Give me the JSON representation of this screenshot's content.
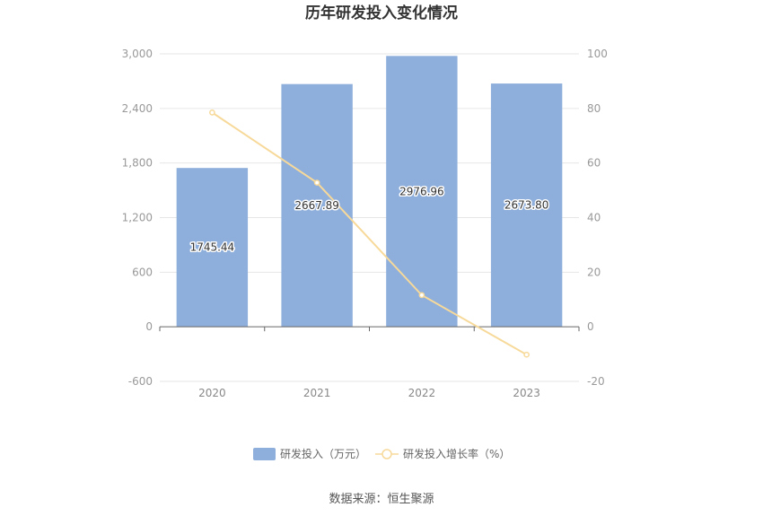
{
  "chart_data": {
    "type": "bar",
    "title": "历年研发投入变化情况",
    "categories": [
      "2020",
      "2021",
      "2022",
      "2023"
    ],
    "series": [
      {
        "name": "研发投入（万元）",
        "type": "bar",
        "axis": "left",
        "values": [
          1745.44,
          2667.89,
          2976.96,
          2673.8
        ],
        "labels": [
          "1745.44",
          "2667.89",
          "2976.96",
          "2673.80"
        ],
        "color": "#8eaedb"
      },
      {
        "name": "研发投入增长率（%）",
        "type": "line",
        "axis": "right",
        "values": [
          78.5,
          52.8,
          11.6,
          -10.2
        ],
        "color": "#f7d99a"
      }
    ],
    "y_left": {
      "min": -600,
      "max": 3000,
      "ticks": [
        "-600",
        "0",
        "600",
        "1,200",
        "1,800",
        "2,400",
        "3,000"
      ],
      "tick_values": [
        -600,
        0,
        600,
        1200,
        1800,
        2400,
        3000
      ]
    },
    "y_right": {
      "min": -20,
      "max": 100,
      "ticks": [
        "-20",
        "0",
        "20",
        "40",
        "60",
        "80",
        "100"
      ],
      "tick_values": [
        -20,
        0,
        20,
        40,
        60,
        80,
        100
      ]
    },
    "grid": true,
    "legend_position": "bottom",
    "source": "数据来源：恒生聚源"
  }
}
